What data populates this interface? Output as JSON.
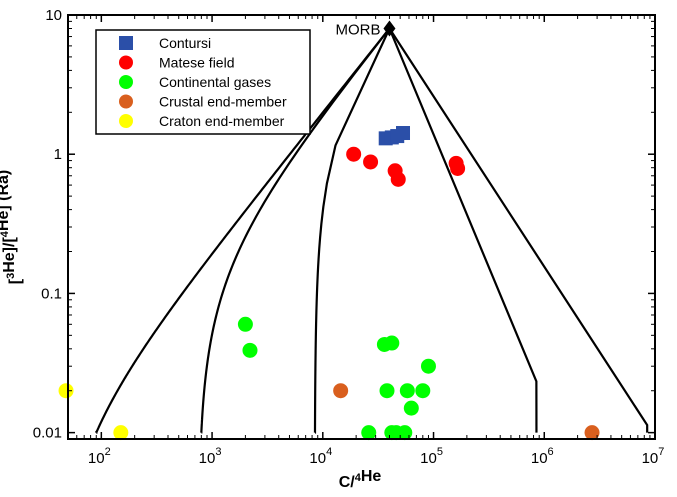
{
  "chart_data": {
    "type": "scatter",
    "xlabel": "C/⁴He",
    "ylabel": "[³He]/[⁴He] (Ra)",
    "x_scale": "log",
    "y_scale": "log",
    "xlim": [
      50,
      10000000
    ],
    "ylim": [
      0.009,
      10
    ],
    "x_ticks": [
      {
        "value": 100,
        "base": "10",
        "exp": "2"
      },
      {
        "value": 1000,
        "base": "10",
        "exp": "3"
      },
      {
        "value": 10000,
        "base": "10",
        "exp": "4"
      },
      {
        "value": 100000,
        "base": "10",
        "exp": "5"
      },
      {
        "value": 1000000,
        "base": "10",
        "exp": "6"
      },
      {
        "value": 10000000,
        "base": "10",
        "exp": "7"
      }
    ],
    "y_ticks": [
      {
        "value": 0.01,
        "label": "0.01"
      },
      {
        "value": 0.1,
        "label": "0.1"
      },
      {
        "value": 1,
        "label": "1"
      },
      {
        "value": 10,
        "label": "10"
      }
    ],
    "grid": false,
    "legend_position": "top-left",
    "annotations": [
      {
        "text": "MORB",
        "x": 40000,
        "y": 8
      }
    ],
    "morb_point": {
      "x": 40000,
      "y": 8
    },
    "mixing_curves": [
      {
        "x_end": 90,
        "y_end": 0.01
      },
      {
        "x_end": 800,
        "y_end": 0.01
      },
      {
        "x_end": 8500,
        "y_end": 0.01
      },
      {
        "x_end": 850000,
        "y_end": 0.01
      },
      {
        "x_end": 8500000,
        "y_end": 0.01
      }
    ],
    "series": [
      {
        "name": "Contursi",
        "marker": "square",
        "color": "#2b4fa8",
        "points": [
          [
            37000,
            1.3
          ],
          [
            42000,
            1.32
          ],
          [
            47000,
            1.35
          ],
          [
            53000,
            1.42
          ]
        ]
      },
      {
        "name": "Matese field",
        "marker": "circle",
        "color": "#ff0000",
        "points": [
          [
            19000,
            1.0
          ],
          [
            27000,
            0.88
          ],
          [
            45000,
            0.76
          ],
          [
            48000,
            0.66
          ],
          [
            160000,
            0.86
          ],
          [
            165000,
            0.79
          ]
        ]
      },
      {
        "name": "Continental gases",
        "marker": "circle",
        "color": "#00ff00",
        "points": [
          [
            2000,
            0.06
          ],
          [
            2200,
            0.039
          ],
          [
            36000,
            0.043
          ],
          [
            42000,
            0.044
          ],
          [
            90000,
            0.03
          ],
          [
            38000,
            0.02
          ],
          [
            58000,
            0.02
          ],
          [
            80000,
            0.02
          ],
          [
            63000,
            0.015
          ],
          [
            26000,
            0.01
          ],
          [
            42000,
            0.01
          ],
          [
            46000,
            0.01
          ],
          [
            55000,
            0.01
          ]
        ]
      },
      {
        "name": "Crustal end-member",
        "marker": "circle",
        "color": "#d95f1e",
        "points": [
          [
            14500,
            0.02
          ],
          [
            2700000,
            0.01
          ]
        ]
      },
      {
        "name": "Craton end-member",
        "marker": "circle",
        "color": "#ffff00",
        "points": [
          [
            48,
            0.02
          ],
          [
            150,
            0.01
          ]
        ]
      }
    ]
  }
}
